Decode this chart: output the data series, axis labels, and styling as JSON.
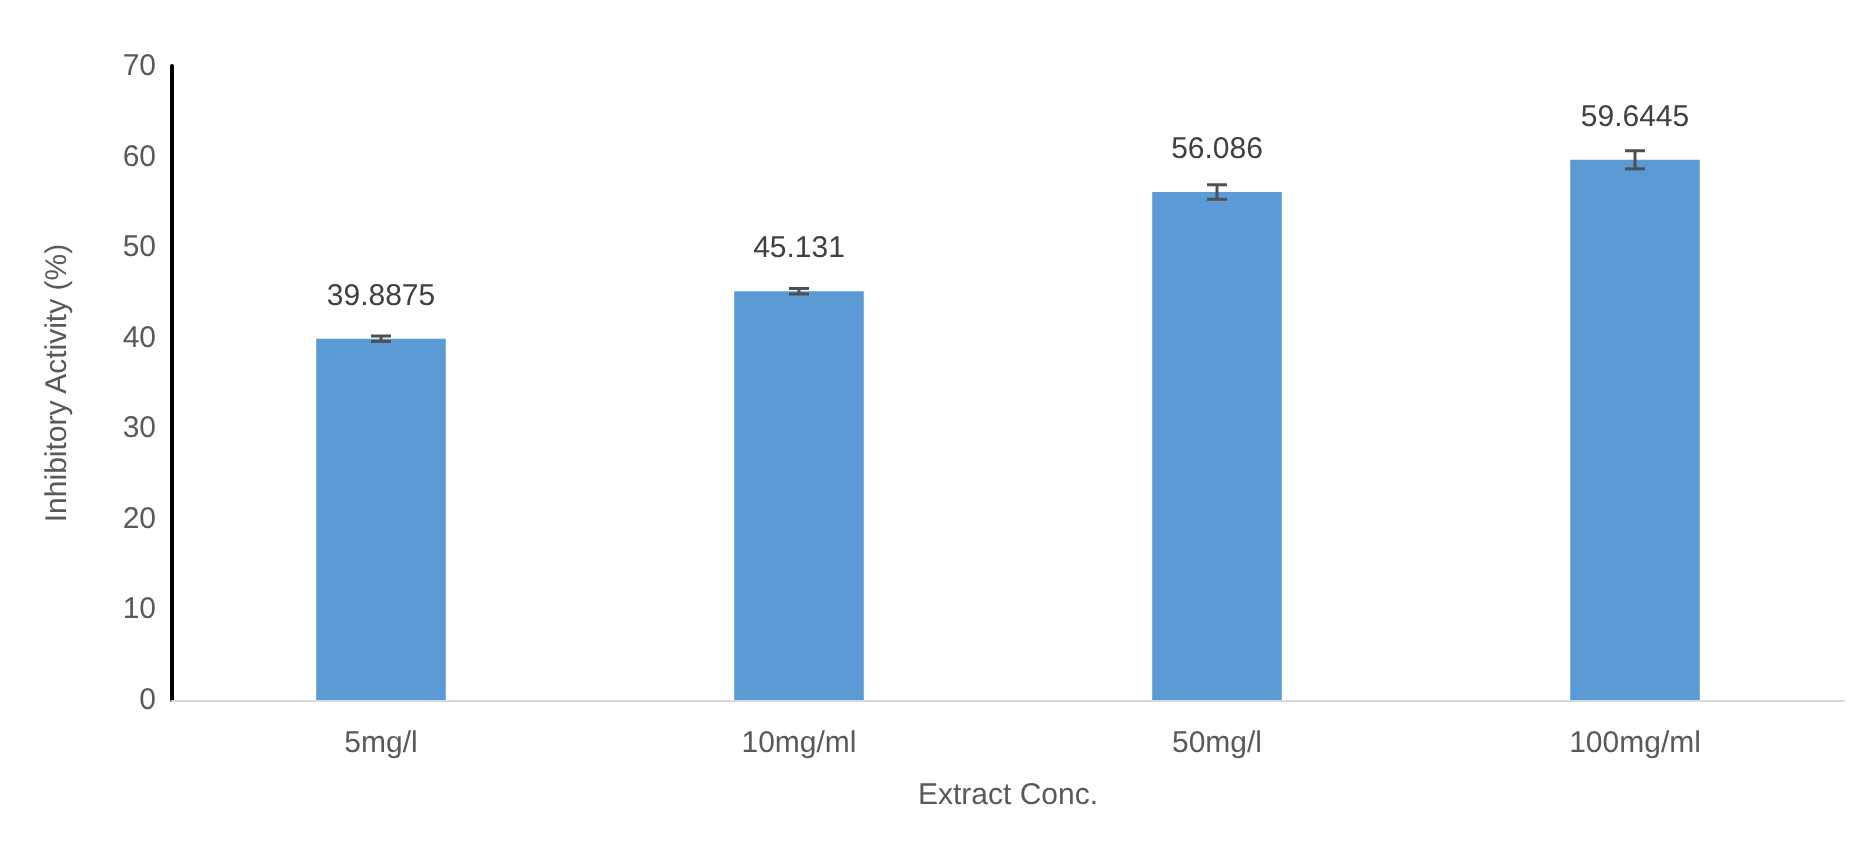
{
  "chart_data": {
    "type": "bar",
    "xlabel": "Extract Conc.",
    "ylabel": "Inhibitory Activity (%)",
    "categories": [
      "5mg/l",
      "10mg/ml",
      "50mg/l",
      "100mg/ml"
    ],
    "values": [
      39.8875,
      45.131,
      56.086,
      59.6445
    ],
    "errors": [
      0.3,
      0.3,
      0.8,
      1.0
    ],
    "color": "#5b9bd5",
    "ylim": [
      0,
      70
    ],
    "yticks": [
      0,
      10,
      20,
      30,
      40,
      50,
      60,
      70
    ],
    "grid": false,
    "data_labels": true
  }
}
